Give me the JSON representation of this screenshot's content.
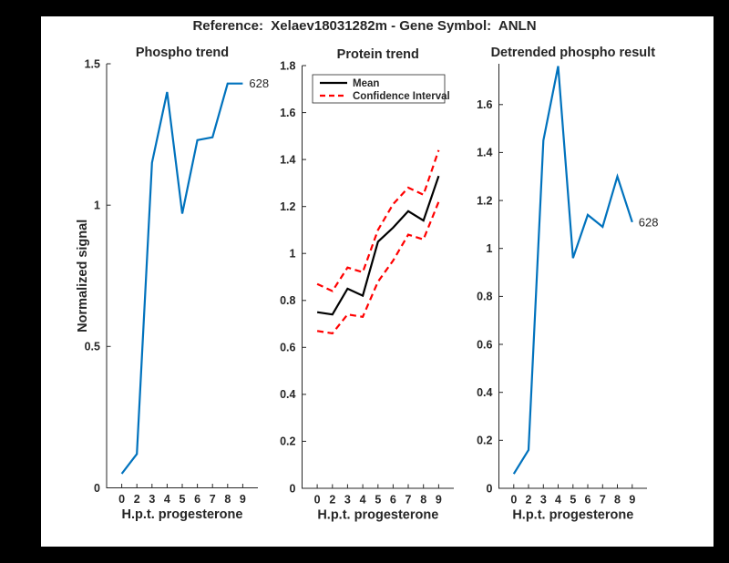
{
  "figure": {
    "title": "Reference:  Xelaev18031282m - Gene Symbol:  ANLN",
    "background_color": "#000000",
    "canvas_color": "#ffffff",
    "axis_color": "#262626"
  },
  "chart_data": [
    {
      "id": "phospho",
      "type": "line",
      "title": "Phospho trend",
      "xlabel": "H.p.t. progesterone",
      "ylabel": "Normalized signal",
      "grid": false,
      "x_tick_labels": [
        "0",
        "2",
        "3",
        "4",
        "5",
        "6",
        "7",
        "8",
        "9"
      ],
      "ylim": [
        0,
        1.5
      ],
      "yticks": [
        0,
        0.5,
        1,
        1.5
      ],
      "ytick_labels": [
        "0",
        "0.5",
        "1",
        "1.5"
      ],
      "series": [
        {
          "name": "phospho-signal",
          "color": "#0072BD",
          "style": "solid",
          "values": [
            0.05,
            0.12,
            1.15,
            1.4,
            0.97,
            1.23,
            1.24,
            1.43,
            1.43
          ]
        }
      ],
      "annotation": {
        "text": "628",
        "at_point_index": 8
      }
    },
    {
      "id": "protein",
      "type": "line",
      "title": "Protein trend",
      "xlabel": "H.p.t. progesterone",
      "ylabel": "",
      "grid": false,
      "x_tick_labels": [
        "0",
        "2",
        "3",
        "4",
        "5",
        "6",
        "7",
        "8",
        "9"
      ],
      "ylim": [
        0,
        1.8
      ],
      "yticks": [
        0,
        0.2,
        0.4,
        0.6,
        0.8,
        1,
        1.2,
        1.4,
        1.6,
        1.8
      ],
      "ytick_labels": [
        "0",
        "0.2",
        "0.4",
        "0.6",
        "0.8",
        "1",
        "1.2",
        "1.4",
        "1.6",
        "1.8"
      ],
      "legend": {
        "position": "top-left",
        "entries": [
          {
            "label": "Mean",
            "color": "#000000",
            "style": "solid"
          },
          {
            "label": "Confidence Interval",
            "color": "#FF0000",
            "style": "dashed"
          }
        ]
      },
      "series": [
        {
          "name": "mean",
          "color": "#000000",
          "style": "solid",
          "values": [
            0.75,
            0.74,
            0.85,
            0.82,
            1.05,
            1.11,
            1.18,
            1.14,
            1.33
          ]
        },
        {
          "name": "ci-upper",
          "color": "#FF0000",
          "style": "dashed",
          "values": [
            0.87,
            0.84,
            0.94,
            0.92,
            1.1,
            1.21,
            1.28,
            1.25,
            1.44
          ]
        },
        {
          "name": "ci-lower",
          "color": "#FF0000",
          "style": "dashed",
          "values": [
            0.67,
            0.66,
            0.74,
            0.73,
            0.88,
            0.97,
            1.08,
            1.06,
            1.22
          ]
        }
      ]
    },
    {
      "id": "detrended",
      "type": "line",
      "title": "Detrended phospho result",
      "xlabel": "H.p.t. progesterone",
      "ylabel": "",
      "grid": false,
      "x_tick_labels": [
        "0",
        "2",
        "3",
        "4",
        "5",
        "6",
        "7",
        "8",
        "9"
      ],
      "ylim": [
        0,
        1.77
      ],
      "yticks": [
        0,
        0.2,
        0.4,
        0.6,
        0.8,
        1,
        1.2,
        1.4,
        1.6
      ],
      "ytick_labels": [
        "0",
        "0.2",
        "0.4",
        "0.6",
        "0.8",
        "1",
        "1.2",
        "1.4",
        "1.6"
      ],
      "series": [
        {
          "name": "detrended-signal",
          "color": "#0072BD",
          "style": "solid",
          "values": [
            0.06,
            0.16,
            1.45,
            1.76,
            0.96,
            1.14,
            1.09,
            1.3,
            1.11
          ]
        }
      ],
      "annotation": {
        "text": "628",
        "at_point_index": 8
      }
    }
  ]
}
